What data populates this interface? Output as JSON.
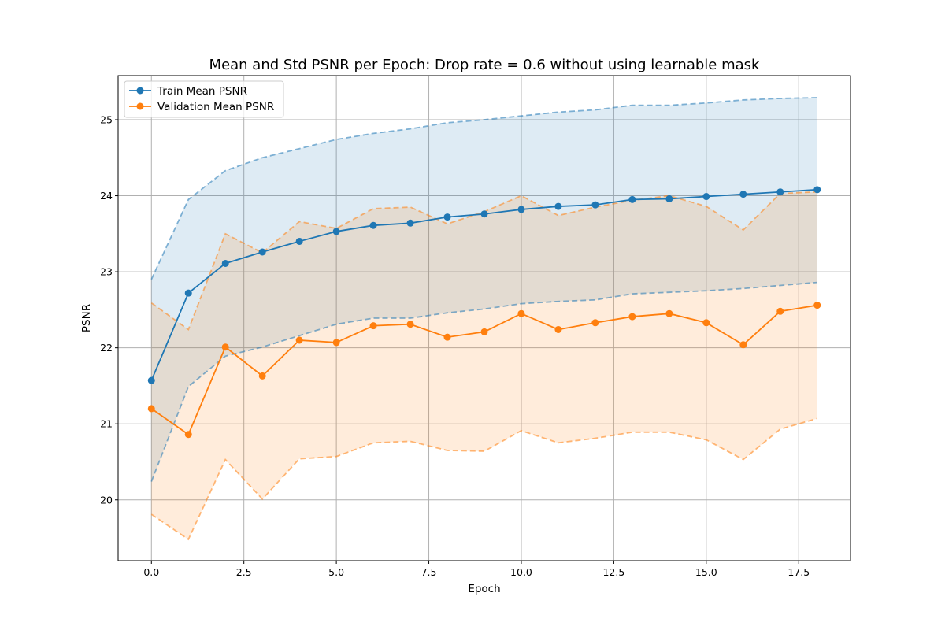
{
  "chart_data": {
    "type": "line",
    "title": "Mean and Std PSNR per Epoch: Drop rate = 0.6 without using learnable mask",
    "xlabel": "Epoch",
    "ylabel": "PSNR",
    "xlim": [
      -0.9,
      18.9
    ],
    "ylim": [
      19.2,
      25.58
    ],
    "x_ticks": [
      0,
      2.5,
      5,
      7.5,
      10,
      12.5,
      15,
      17.5
    ],
    "x_tick_labels": [
      "0.0",
      "2.5",
      "5.0",
      "7.5",
      "10.0",
      "12.5",
      "15.0",
      "17.5"
    ],
    "y_ticks": [
      20,
      21,
      22,
      23,
      24,
      25
    ],
    "y_tick_labels": [
      "20",
      "21",
      "22",
      "23",
      "24",
      "25"
    ],
    "grid": true,
    "legend_position": "top-left",
    "x": [
      0,
      1,
      2,
      3,
      4,
      5,
      6,
      7,
      8,
      9,
      10,
      11,
      12,
      13,
      14,
      15,
      16,
      17,
      18
    ],
    "series": [
      {
        "name": "Train Mean PSNR",
        "color": "#1f77b4",
        "values": [
          21.57,
          22.72,
          23.11,
          23.26,
          23.4,
          23.53,
          23.61,
          23.64,
          23.72,
          23.76,
          23.82,
          23.86,
          23.88,
          23.95,
          23.96,
          23.99,
          24.02,
          24.05,
          24.08
        ],
        "upper": [
          22.9,
          23.95,
          24.33,
          24.5,
          24.62,
          24.74,
          24.82,
          24.88,
          24.96,
          25.0,
          25.05,
          25.1,
          25.13,
          25.19,
          25.19,
          25.22,
          25.26,
          25.28,
          25.29
        ],
        "lower": [
          20.24,
          21.49,
          21.89,
          22.01,
          22.16,
          22.31,
          22.39,
          22.39,
          22.46,
          22.51,
          22.58,
          22.61,
          22.63,
          22.71,
          22.73,
          22.75,
          22.78,
          22.82,
          22.86
        ]
      },
      {
        "name": "Validation Mean PSNR",
        "color": "#ff7f0e",
        "values": [
          21.2,
          20.86,
          22.01,
          21.63,
          22.1,
          22.07,
          22.29,
          22.31,
          22.14,
          22.21,
          22.45,
          22.24,
          22.33,
          22.41,
          22.45,
          22.33,
          22.04,
          22.48,
          22.56
        ],
        "upper": [
          22.59,
          22.24,
          23.5,
          23.25,
          23.66,
          23.57,
          23.83,
          23.85,
          23.63,
          23.79,
          24.0,
          23.74,
          23.85,
          23.94,
          24.0,
          23.86,
          23.55,
          24.03,
          24.05
        ],
        "lower": [
          19.81,
          19.48,
          20.53,
          20.01,
          20.54,
          20.57,
          20.75,
          20.77,
          20.65,
          20.64,
          20.91,
          20.75,
          20.81,
          20.89,
          20.89,
          20.79,
          20.53,
          20.93,
          21.07
        ]
      }
    ]
  }
}
